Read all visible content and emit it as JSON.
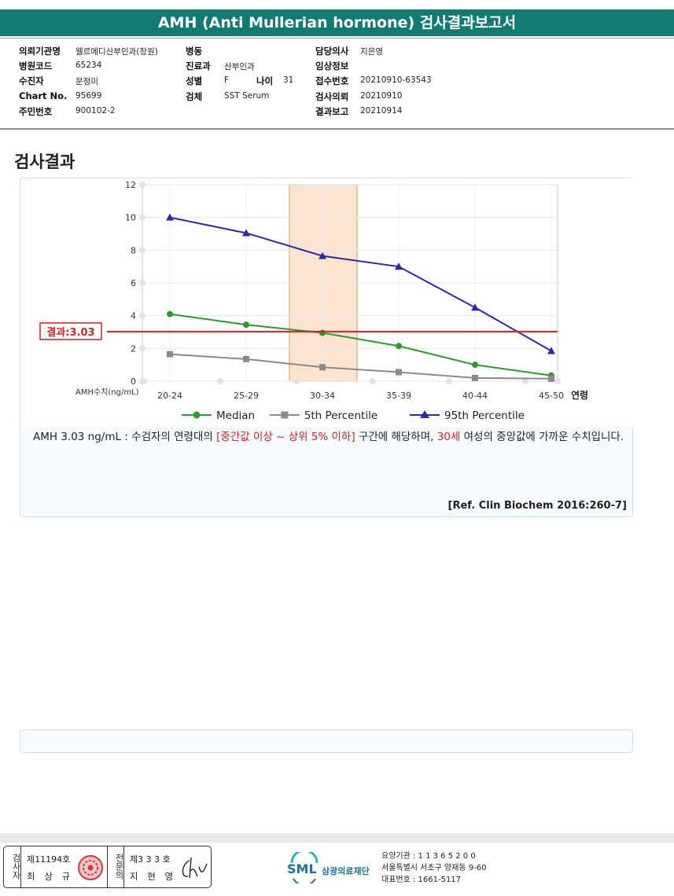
{
  "report": {
    "title": "AMH (Anti Mullerian hormone) 검사결과보고서"
  },
  "info": {
    "col1": [
      {
        "label": "의뢰기관명",
        "value": "웰르메디산부인과(창원)"
      },
      {
        "label": "병원코드",
        "value": "65234"
      },
      {
        "label": "수진자",
        "value": "문정미"
      },
      {
        "label": "Chart No.",
        "value": "95699"
      },
      {
        "label": "주민번호",
        "value": "900102-2"
      }
    ],
    "col2": [
      {
        "label": "병동",
        "value": ""
      },
      {
        "label": "진료과",
        "value": "산부인과"
      },
      {
        "label": "성별",
        "value": "F"
      },
      {
        "label": "검체",
        "value": "SST Serum"
      }
    ],
    "age": {
      "label": "나이",
      "value": "31"
    },
    "col3": [
      {
        "label": "담당의사",
        "value": "지은영"
      },
      {
        "label": "임상정보",
        "value": ""
      },
      {
        "label": "접수번호",
        "value": "20210910-63543"
      },
      {
        "label": "검사의뢰",
        "value": "20210910"
      },
      {
        "label": "결과보고",
        "value": "20210914"
      }
    ]
  },
  "section": {
    "title": "검사결과"
  },
  "chart_data": {
    "type": "line",
    "categories": [
      "20-24",
      "25-29",
      "30-34",
      "35-39",
      "40-44",
      "45-50"
    ],
    "x_suffix_label": "연령",
    "ylabel": "AMH수치(ng/mL)",
    "ylim": [
      0,
      12
    ],
    "yticks": [
      0,
      2,
      4,
      6,
      8,
      10,
      12
    ],
    "grid": true,
    "highlight_category": "30-34",
    "result_line": {
      "value": 3.03,
      "label": "결과:3.03",
      "color": "#d32222"
    },
    "series": [
      {
        "name": "Median",
        "color": "#2c9a2c",
        "marker": "circle",
        "values": [
          4.1,
          3.45,
          2.95,
          2.15,
          1.0,
          0.35
        ]
      },
      {
        "name": "5th Percentile",
        "color": "#8a8a8a",
        "marker": "square",
        "values": [
          1.65,
          1.35,
          0.85,
          0.55,
          0.2,
          0.15
        ]
      },
      {
        "name": "95th Percentile",
        "color": "#2a2aa8",
        "marker": "triangle",
        "values": [
          10.0,
          9.05,
          7.65,
          7.0,
          4.5,
          1.85
        ]
      }
    ]
  },
  "result": {
    "text_before": "AMH  3.03 ng/mL : 수검자의 연령대의 ",
    "highlight1": "[중간값 이상 ~ 상위 5% 이하]",
    "text_mid": " 구간에 해당하며, ",
    "highlight2": "30세",
    "text_after": " 여성의 중앙값에 가까운 수치입니다.",
    "reference": "[Ref. Clin Biochem 2016:260-7]"
  },
  "signature": {
    "tester_label": "검사자",
    "tester_no": "제11194호",
    "tester_name": "최 상 규",
    "specialist_label": "전문의",
    "specialist_no": "제3 3 3 호",
    "specialist_name": "지 현 영"
  },
  "organization": {
    "logo": "SML",
    "name": "삼광의료재단",
    "code_line": "요양기관 : 1 1 3 6 5 2 0 0",
    "address_line": "서울특별시 서초구 양재동 9-60",
    "phone_line": "대표번호 : 1661-5117"
  }
}
